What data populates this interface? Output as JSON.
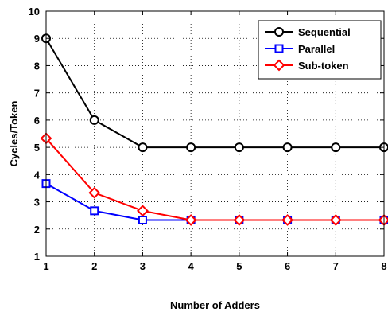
{
  "chart_data": {
    "type": "line",
    "xlabel": "Number of Adders",
    "ylabel": "Cycles/Token",
    "xlim": [
      1,
      8
    ],
    "ylim": [
      1,
      10
    ],
    "xticks": [
      1,
      2,
      3,
      4,
      5,
      6,
      7,
      8
    ],
    "yticks": [
      1,
      2,
      3,
      4,
      5,
      6,
      7,
      8,
      9,
      10
    ],
    "grid": true,
    "legend_position": "top-right",
    "x": [
      1,
      2,
      3,
      4,
      5,
      6,
      7,
      8
    ],
    "series": [
      {
        "name": "Sequential",
        "values": [
          9,
          6,
          5,
          5,
          5,
          5,
          5,
          5
        ],
        "color": "#000000",
        "marker": "circle"
      },
      {
        "name": "Parallel",
        "values": [
          3.67,
          2.67,
          2.33,
          2.33,
          2.33,
          2.33,
          2.33,
          2.33
        ],
        "color": "#0000ff",
        "marker": "square"
      },
      {
        "name": "Sub-token",
        "values": [
          5.33,
          3.33,
          2.67,
          2.33,
          2.33,
          2.33,
          2.33,
          2.33
        ],
        "color": "#ff0000",
        "marker": "diamond"
      }
    ]
  }
}
